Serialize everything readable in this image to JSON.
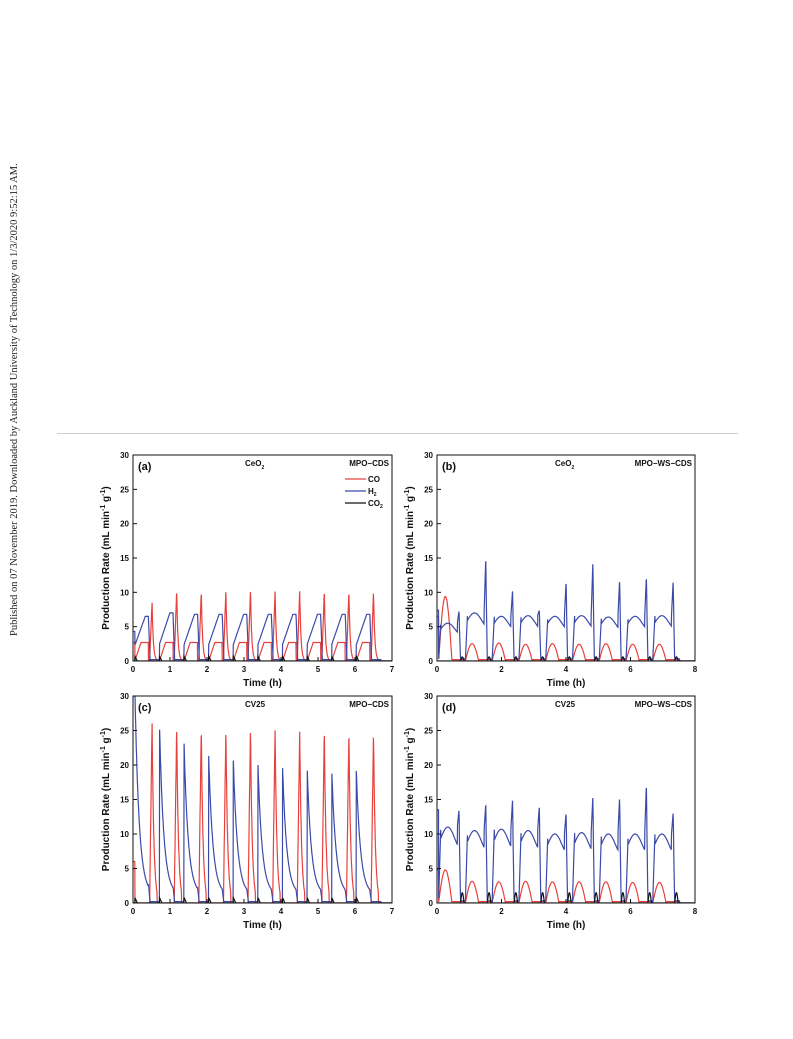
{
  "watermark": "Published on 07 November 2019. Downloaded by Auckland University of Technology on 1/3/2020 9:52:15 AM.",
  "colors": {
    "CO": "#e8413c",
    "H2": "#3b4aa8",
    "CO2": "#111111"
  },
  "chart_data": [
    {
      "type": "line",
      "panel_label": "(a)",
      "title_left": "CeO",
      "title_left_sub": "2",
      "title_right": "MPO−CDS",
      "xlabel": "Time (h)",
      "ylabel": "Production Rate (mL min",
      "ylim": [
        0,
        30
      ],
      "xlim": [
        0,
        7
      ],
      "xticks": [
        0,
        1,
        2,
        3,
        4,
        5,
        6,
        7
      ],
      "yticks": [
        0,
        5,
        10,
        15,
        20,
        25,
        30
      ],
      "legend": [
        {
          "name": "CO",
          "color": "#e8413c",
          "sub": ""
        },
        {
          "name": "H",
          "color": "#3b4aa8",
          "sub": "2"
        },
        {
          "name": "CO",
          "color": "#111111",
          "sub": "2"
        }
      ],
      "legend_position": "top-right",
      "cycle": {
        "start": 0.05,
        "period": 0.665,
        "count": 10,
        "CO_peaks": [
          8.6,
          10.3,
          10.2,
          10.4,
          10.3,
          10.2,
          10.3,
          10.2,
          10.2,
          10.2
        ],
        "H2_peaks": [
          6.5,
          7.0,
          6.8,
          6.8,
          6.8,
          6.8,
          6.8,
          6.8,
          6.8,
          6.8
        ],
        "H2_initial": 4.3,
        "CO_initial": 2.7,
        "CO2_peak": 0.7,
        "profile": "a"
      }
    },
    {
      "type": "line",
      "panel_label": "(b)",
      "title_left": "CeO",
      "title_left_sub": "2",
      "title_right": "MPO−WS−CDS",
      "xlabel": "Time (h)",
      "ylabel": "Production Rate (mL min",
      "ylim": [
        0,
        30
      ],
      "xlim": [
        0,
        8
      ],
      "xticks": [
        0,
        2,
        4,
        6,
        8
      ],
      "yticks": [
        0,
        5,
        10,
        15,
        20,
        25,
        30
      ],
      "legend": [],
      "cycle": {
        "start": 0.05,
        "period": 0.83,
        "count": 9,
        "CO_peaks": [
          9.4,
          2.8,
          2.9,
          2.7,
          2.8,
          2.7,
          2.8,
          2.7,
          2.7
        ],
        "H2_peaks": [
          7.3,
          14.9,
          10.2,
          7.4,
          11.5,
          14.2,
          11.8,
          12.2,
          11.5
        ],
        "H2_plateau": [
          5.5,
          7.0,
          6.5,
          6.6,
          6.5,
          6.6,
          6.4,
          6.5,
          6.6
        ],
        "H2_initial": 7.4,
        "CO_initial": 6.5,
        "CO2_peak": 0.6,
        "profile": "b"
      }
    },
    {
      "type": "line",
      "panel_label": "(c)",
      "title_left": "CV25",
      "title_left_sub": "",
      "title_right": "MPO−CDS",
      "xlabel": "Time (h)",
      "ylabel": "Production Rate (mL min",
      "ylim": [
        0,
        30
      ],
      "xlim": [
        0,
        7
      ],
      "xticks": [
        0,
        1,
        2,
        3,
        4,
        5,
        6,
        7
      ],
      "yticks": [
        0,
        5,
        10,
        15,
        20,
        25,
        30
      ],
      "legend": [],
      "cycle": {
        "start": 0.05,
        "period": 0.665,
        "count": 10,
        "CO_peaks": [
          26.3,
          25.6,
          25.5,
          25.3,
          25.2,
          25.2,
          25.1,
          25.0,
          25.0,
          24.9
        ],
        "H2_peaks": [
          30.0,
          25.0,
          21.9,
          20.3,
          19.8,
          19.3,
          19.0,
          18.8,
          18.5,
          18.1
        ],
        "H2_initial": 30.0,
        "CO_initial": 6.0,
        "CO2_peak": 0.8,
        "profile": "c"
      }
    },
    {
      "type": "line",
      "panel_label": "(d)",
      "title_left": "CV25",
      "title_left_sub": "",
      "title_right": "MPO−WS−CDS",
      "xlabel": "Time (h)",
      "ylabel": "Production Rate (mL min",
      "ylim": [
        0,
        30
      ],
      "xlim": [
        0,
        8
      ],
      "xticks": [
        0,
        2,
        4,
        6,
        8
      ],
      "yticks": [
        0,
        5,
        10,
        15,
        20,
        25,
        30
      ],
      "legend": [],
      "cycle": {
        "start": 0.05,
        "period": 0.83,
        "count": 9,
        "CO_peaks": [
          4.8,
          3.5,
          3.4,
          3.5,
          3.4,
          3.4,
          3.4,
          3.3,
          3.3
        ],
        "H2_peaks": [
          13.5,
          14.4,
          14.9,
          14.0,
          13.0,
          15.3,
          15.3,
          17.1,
          13.0
        ],
        "H2_plateau": [
          11.0,
          10.5,
          10.7,
          10.5,
          10.0,
          10.2,
          10.0,
          10.0,
          10.0
        ],
        "H2_initial": 13.5,
        "CO_initial": 4.8,
        "CO2_peak": 1.5,
        "profile": "d"
      }
    }
  ]
}
